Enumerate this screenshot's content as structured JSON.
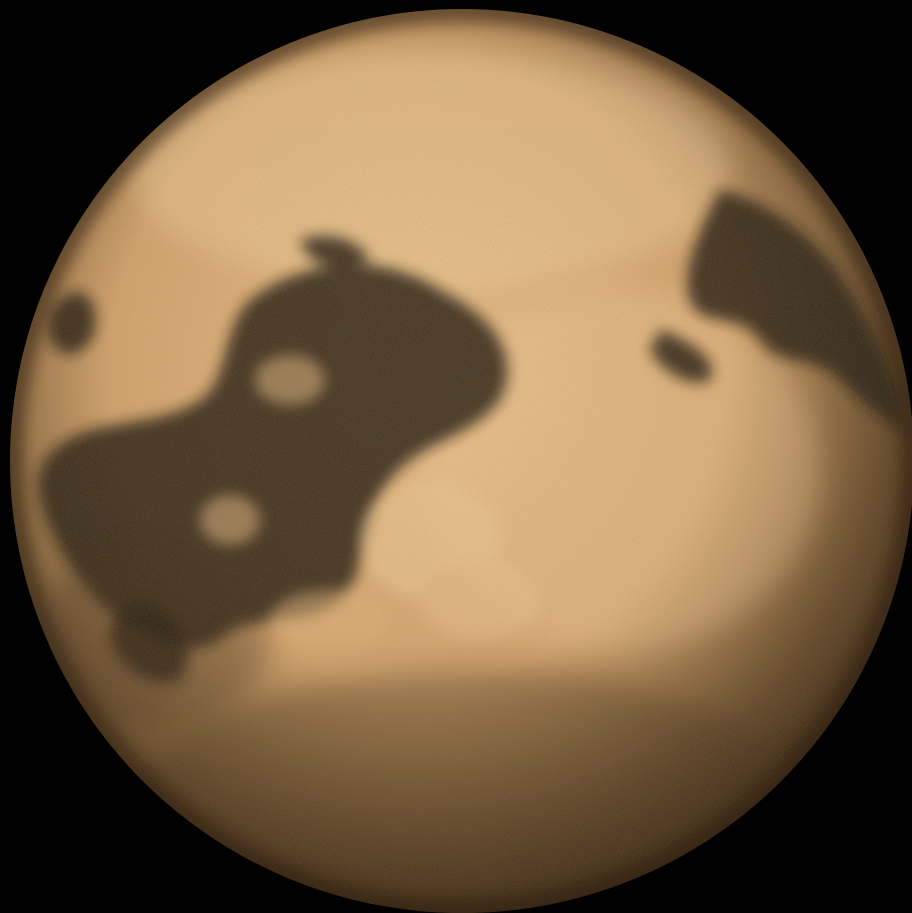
{
  "image": {
    "subject": "moon-disk",
    "colors": {
      "space": "#000000",
      "surface_light": "#f0c58e",
      "surface_mid": "#d7a66f",
      "surface_shadow": "#5e4426",
      "dark_region": "#1d170e",
      "limb": "#2d1d0c"
    }
  }
}
